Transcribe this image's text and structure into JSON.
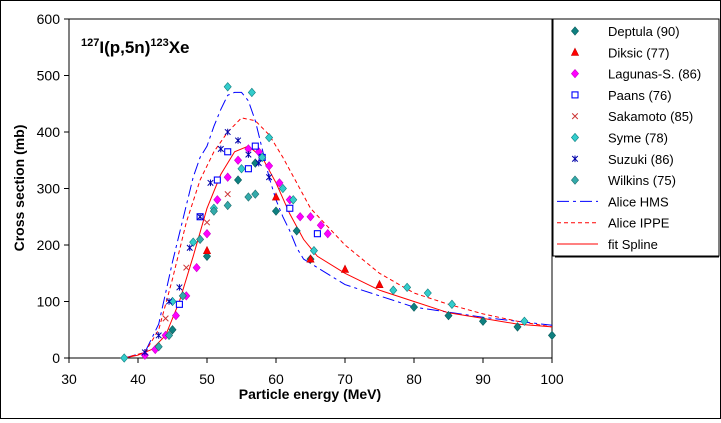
{
  "chart_data": {
    "type": "scatter",
    "title_parts": {
      "a": "127",
      "b": "I(p,5n)",
      "c": "123",
      "d": "Xe"
    },
    "xlabel": "Particle energy (MeV)",
    "ylabel": "Cross section (mb)",
    "xlim": [
      30,
      100
    ],
    "ylim": [
      0,
      600
    ],
    "x_ticks": [
      "30",
      "40",
      "50",
      "60",
      "70",
      "80",
      "90",
      "100"
    ],
    "y_ticks": [
      "0",
      "100",
      "200",
      "300",
      "400",
      "500",
      "600"
    ],
    "grid": false,
    "legend_position": "right",
    "series": [
      {
        "name": "Deptula (90)",
        "kind": "marker",
        "marker": "diamond",
        "color": "#0f8080",
        "stroke": "#0a5c5c",
        "x": [
          45,
          50,
          54.5,
          57,
          60,
          63,
          65,
          80,
          85,
          90,
          95,
          100
        ],
        "y": [
          50,
          180,
          315,
          345,
          260,
          225,
          175,
          90,
          75,
          65,
          55,
          40
        ]
      },
      {
        "name": "Diksic (77)",
        "kind": "marker",
        "marker": "triangle",
        "color": "#ff0000",
        "stroke": "#cc0000",
        "x": [
          50,
          60,
          65,
          70,
          75
        ],
        "y": [
          190,
          285,
          175,
          157,
          130
        ]
      },
      {
        "name": "Lagunas-S. (86)",
        "kind": "marker",
        "marker": "diamond",
        "color": "#ff00ff",
        "stroke": "#cc00cc",
        "x": [
          41,
          42.5,
          44,
          45.5,
          47,
          48.5,
          50,
          51.5,
          53,
          54.5,
          56,
          57.5,
          59,
          60.5,
          62,
          63.5,
          65,
          66.5,
          67.5
        ],
        "y": [
          5,
          15,
          40,
          75,
          110,
          160,
          220,
          280,
          320,
          350,
          370,
          365,
          340,
          310,
          280,
          250,
          250,
          235,
          220
        ]
      },
      {
        "name": "Paans (76)",
        "kind": "marker",
        "marker": "square",
        "color": "#0000ff",
        "stroke": "#0000ff",
        "x": [
          46,
          49,
          51.5,
          53,
          56,
          57,
          58,
          62,
          66
        ],
        "y": [
          95,
          250,
          315,
          365,
          335,
          375,
          355,
          265,
          220
        ]
      },
      {
        "name": "Sakamoto (85)",
        "kind": "marker",
        "marker": "x",
        "color": "#cc3333",
        "stroke": "#cc3333",
        "x": [
          44,
          47,
          50,
          53
        ],
        "y": [
          70,
          160,
          240,
          290
        ]
      },
      {
        "name": "Syme (78)",
        "kind": "marker",
        "marker": "diamond",
        "color": "#33cccc",
        "stroke": "#0f7f7f",
        "x": [
          38,
          45,
          48,
          51,
          53,
          55,
          56.5,
          58,
          59,
          61,
          62.5,
          65.5,
          77,
          79,
          82,
          85.5,
          96
        ],
        "y": [
          0,
          100,
          205,
          265,
          480,
          335,
          470,
          355,
          390,
          300,
          280,
          190,
          120,
          125,
          115,
          95,
          65
        ]
      },
      {
        "name": "Suzuki (86)",
        "kind": "marker",
        "marker": "star",
        "color": "#0000aa",
        "stroke": "#0000aa",
        "x": [
          41,
          43,
          44.5,
          46,
          47.5,
          49,
          50.5,
          52,
          53,
          54.5,
          56,
          57.5,
          59
        ],
        "y": [
          10,
          40,
          100,
          125,
          195,
          250,
          310,
          370,
          400,
          385,
          360,
          345,
          320
        ]
      },
      {
        "name": "Wilkins (75)",
        "kind": "marker",
        "marker": "diamond",
        "color": "#33aaaa",
        "stroke": "#1e6e6e",
        "x": [
          43,
          44.5,
          46.5,
          49,
          51,
          53,
          56,
          57
        ],
        "y": [
          20,
          40,
          110,
          210,
          260,
          270,
          285,
          290
        ]
      },
      {
        "name": "Alice HMS",
        "kind": "line",
        "dash": "12,4,3,4",
        "color": "#0000ff",
        "x": [
          38,
          41,
          43,
          45,
          47,
          48,
          49,
          50,
          51,
          52,
          53,
          54,
          55,
          56,
          57,
          58,
          59,
          60,
          61,
          62,
          63,
          64,
          70,
          80,
          90,
          100
        ],
        "y": [
          0,
          10,
          60,
          170,
          270,
          320,
          355,
          375,
          410,
          440,
          465,
          470,
          470,
          455,
          420,
          370,
          320,
          280,
          250,
          225,
          195,
          175,
          130,
          90,
          72,
          58
        ]
      },
      {
        "name": "Alice IPPE",
        "kind": "line",
        "dash": "4,3",
        "color": "#ff0000",
        "x": [
          38,
          41,
          43,
          45,
          47,
          49,
          51,
          53,
          55,
          57,
          59,
          61,
          63,
          65,
          70,
          75,
          80,
          85,
          90,
          95,
          100
        ],
        "y": [
          0,
          10,
          50,
          140,
          240,
          315,
          365,
          400,
          425,
          420,
          395,
          355,
          310,
          265,
          200,
          150,
          115,
          95,
          78,
          65,
          55
        ]
      },
      {
        "name": "fit Spline",
        "kind": "line",
        "dash": "",
        "color": "#ff0000",
        "x": [
          38,
          40,
          42,
          44,
          46,
          48,
          50,
          52,
          54,
          56,
          58,
          60,
          62,
          64,
          66,
          70,
          75,
          80,
          85,
          90,
          95,
          100
        ],
        "y": [
          0,
          5,
          15,
          40,
          100,
          180,
          265,
          325,
          365,
          375,
          355,
          310,
          255,
          210,
          180,
          150,
          120,
          100,
          80,
          70,
          60,
          55
        ]
      }
    ]
  }
}
